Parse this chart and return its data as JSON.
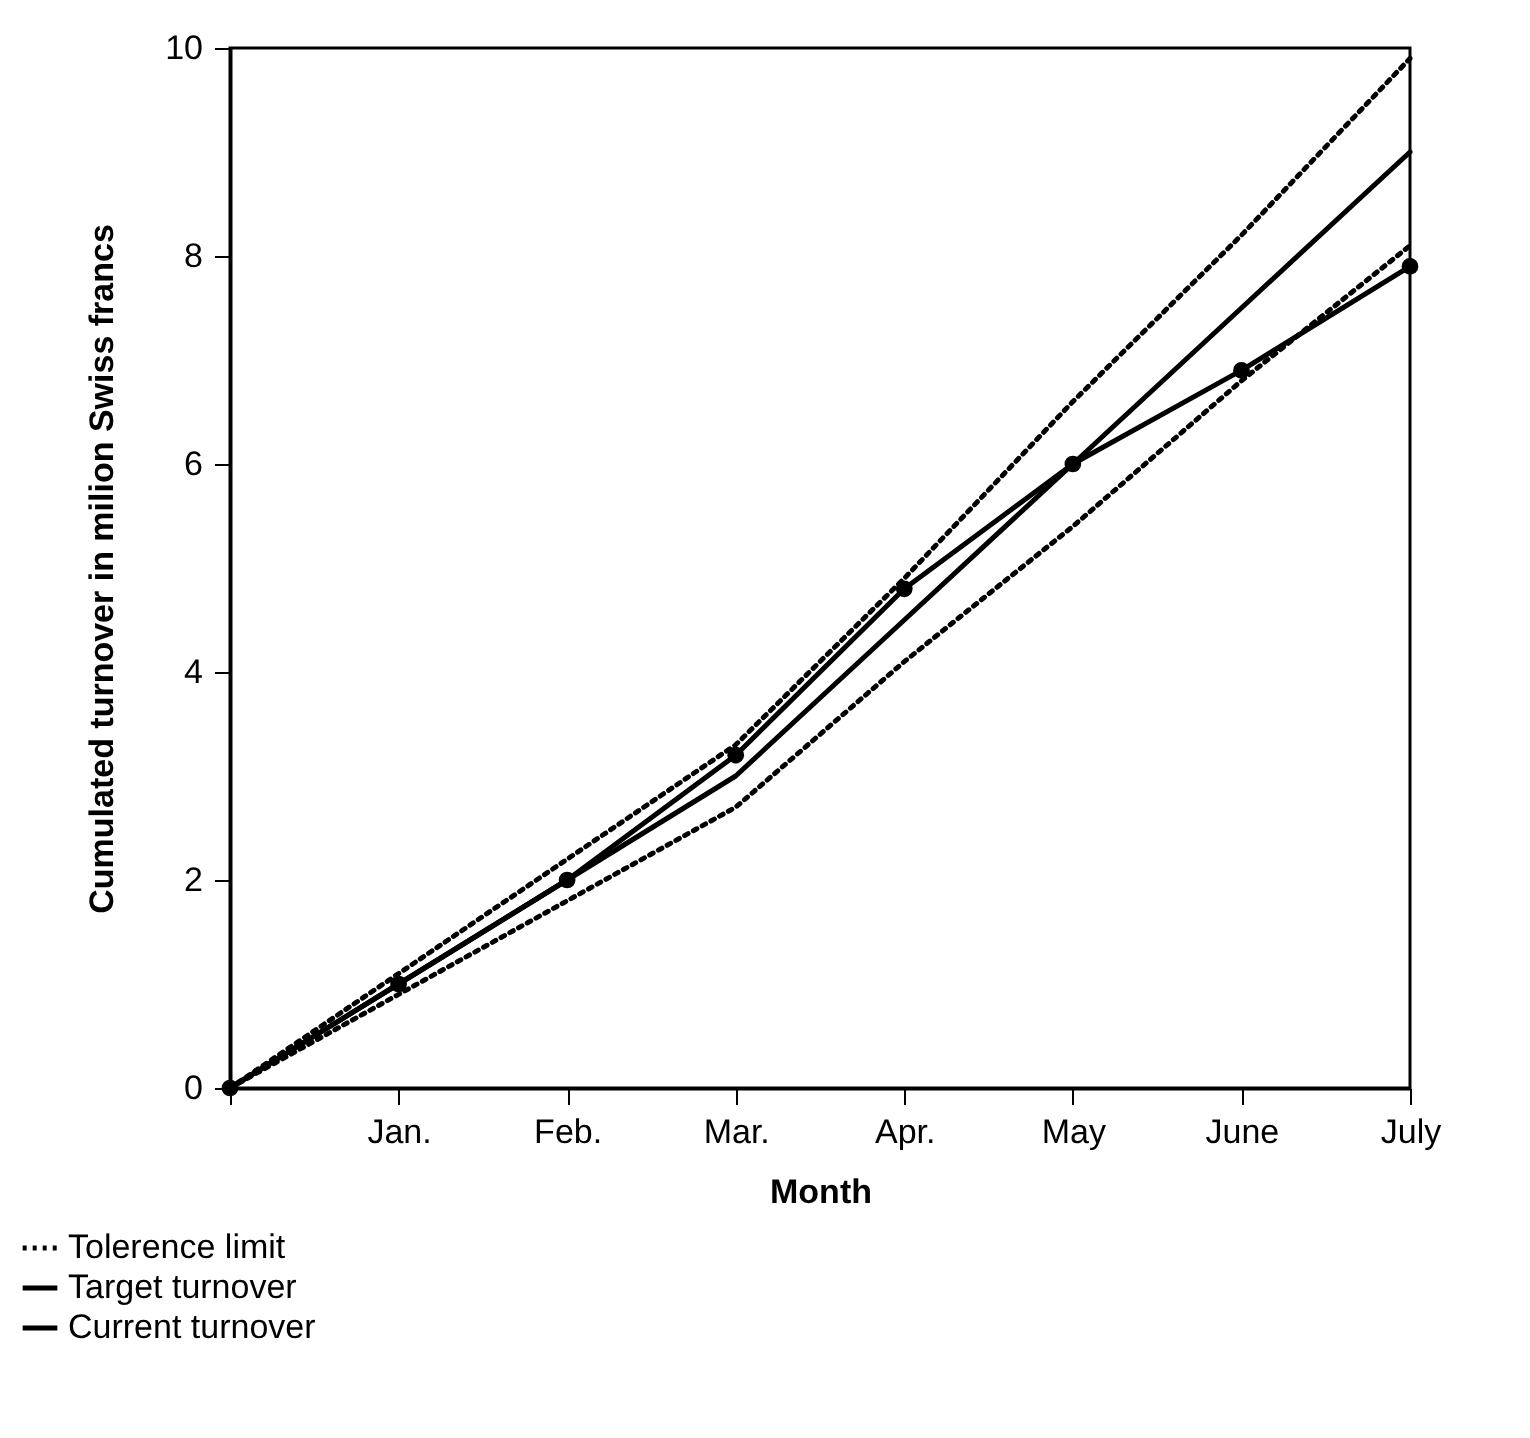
{
  "chart_data": {
    "type": "line",
    "xlabel": "Month",
    "ylabel": "Cumulated turnover in milion Swiss francs",
    "categories": [
      null,
      "Jan.",
      "Feb.",
      "Mar.",
      "Apr.",
      "May",
      "June",
      "July"
    ],
    "series": [
      {
        "name": "Tolerence limit",
        "color": "#000000",
        "line_style": "dotted",
        "marker": "none",
        "values": [
          0,
          1.1,
          2.2,
          3.3,
          4.9,
          6.6,
          8.2,
          9.9
        ]
      },
      {
        "color": "#000000",
        "line_style": "dotted",
        "marker": "none",
        "values": [
          0,
          0.9,
          1.8,
          2.7,
          4.1,
          5.4,
          6.8,
          8.1
        ]
      },
      {
        "name": "Target turnover",
        "color": "#000000",
        "line_style": "solid",
        "marker": "none",
        "values": [
          0,
          1,
          2,
          3,
          4.5,
          6,
          7.5,
          9
        ]
      },
      {
        "name": "Current turnover",
        "color": "#000000",
        "line_style": "solid",
        "marker": "circle",
        "values": [
          0,
          1,
          2,
          3.2,
          4.8,
          6,
          6.9,
          7.9
        ]
      }
    ],
    "ylim": [
      0,
      10
    ],
    "yticks": [
      0,
      2,
      4,
      6,
      8,
      10
    ],
    "grid": false,
    "legend": "bottom left"
  }
}
